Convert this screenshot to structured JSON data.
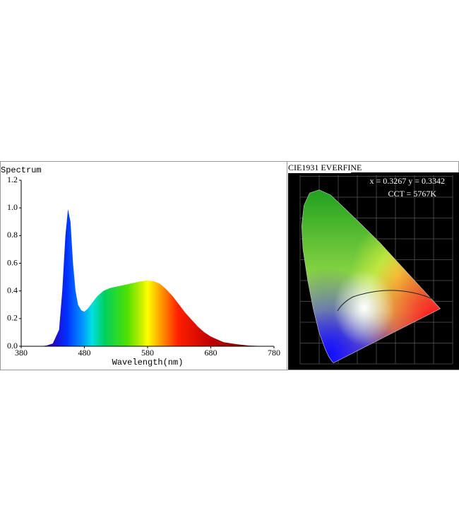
{
  "chart_data": [
    {
      "type": "area",
      "y_label": "Spectrum",
      "x_label": "Wavelength(nm)",
      "x": [
        380,
        390,
        400,
        410,
        420,
        430,
        440,
        445,
        450,
        454,
        458,
        462,
        466,
        470,
        475,
        480,
        485,
        490,
        500,
        510,
        520,
        530,
        540,
        550,
        560,
        570,
        580,
        590,
        600,
        610,
        620,
        630,
        640,
        650,
        660,
        670,
        680,
        690,
        700,
        720,
        740,
        760,
        780
      ],
      "values": [
        0,
        0,
        0,
        0,
        0.005,
        0.02,
        0.12,
        0.4,
        0.8,
        0.99,
        0.9,
        0.6,
        0.4,
        0.3,
        0.26,
        0.25,
        0.27,
        0.3,
        0.36,
        0.4,
        0.42,
        0.43,
        0.44,
        0.45,
        0.46,
        0.47,
        0.475,
        0.47,
        0.45,
        0.41,
        0.36,
        0.3,
        0.24,
        0.19,
        0.14,
        0.1,
        0.07,
        0.05,
        0.03,
        0.015,
        0.005,
        0.002,
        0
      ],
      "xlim": [
        380,
        780
      ],
      "xticks": [
        380,
        480,
        580,
        680,
        780
      ],
      "ylim": [
        0,
        1.2
      ],
      "yticks": [
        {
          "value": 0,
          "label": "0.0"
        },
        0.2,
        0.4,
        0.6,
        0.8,
        {
          "value": 1,
          "label": "1.0"
        },
        1.2
      ],
      "grid": false
    },
    {
      "type": "chromaticity",
      "title": "CIE1931 EVERFINE",
      "coordinates": "x = 0.3267 y = 0.3342",
      "cct": "CCT = 5767K"
    }
  ]
}
